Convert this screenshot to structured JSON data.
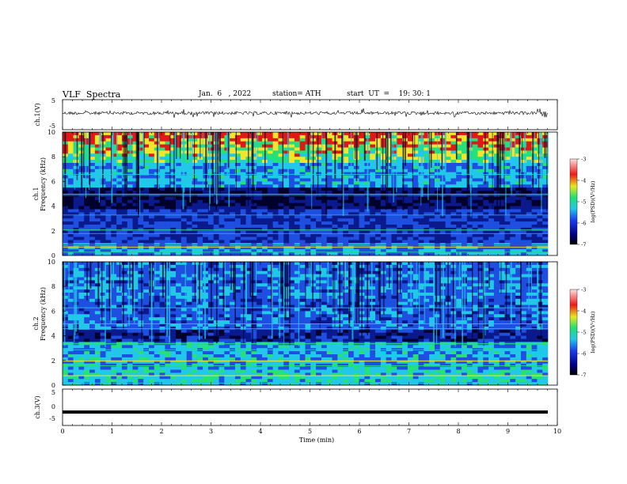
{
  "header": {
    "title": "VLF  Spectra",
    "date": "Jan.  6   , 2022",
    "station": "station= ATH",
    "start_ut": "start  UT  =    19: 30: 1"
  },
  "chart_data": [
    {
      "type": "line",
      "panel": "ch1-waveform",
      "ylabel": "ch.1(V)",
      "ylim": [
        -5,
        5
      ],
      "yticks": [
        "5",
        "-5"
      ],
      "xlim": [
        0,
        10
      ],
      "description_series": "noisy waveform near 0 V with sporadic spikes"
    },
    {
      "type": "heatmap",
      "panel": "ch1-spectrogram",
      "ylabel_top": "ch.1",
      "ylabel": "Frequency  (kHz)",
      "ylim": [
        0,
        10
      ],
      "yticks": [
        "0",
        "2",
        "4",
        "6",
        "8",
        "10"
      ],
      "xlim": [
        0,
        9.8
      ],
      "colorbar": {
        "label": "log(PSD)(V²/Hz)",
        "range": [
          -7,
          -3
        ],
        "ticks": [
          "-3",
          "-4",
          "-5",
          "-6",
          "-7"
        ]
      }
    },
    {
      "type": "heatmap",
      "panel": "ch2-spectrogram",
      "ylabel_top": "ch.2",
      "ylabel": "Frequency  (kHz)",
      "ylim": [
        0,
        10
      ],
      "yticks": [
        "0",
        "2",
        "4",
        "6",
        "8",
        "10"
      ],
      "xlim": [
        0,
        9.8
      ],
      "colorbar": {
        "label": "log(PSD)(V²/Hz)",
        "range": [
          -7,
          -3
        ],
        "ticks": [
          "-3",
          "-4",
          "-5",
          "-6",
          "-7"
        ]
      }
    },
    {
      "type": "line",
      "panel": "ch3-waveform",
      "ylabel": "ch.3(V)",
      "ylim": [
        -5,
        5
      ],
      "yticks": [
        "5",
        "0",
        "-5"
      ],
      "series": [
        {
          "values": [
            -1.3
          ]
        }
      ],
      "xlim": [
        0,
        10
      ]
    }
  ],
  "xaxis": {
    "label": "Time  (min)",
    "ticks": [
      "0",
      "1",
      "2",
      "3",
      "4",
      "5",
      "6",
      "7",
      "8",
      "9",
      "10"
    ],
    "range": [
      0,
      10
    ]
  },
  "colors": {
    "deep": "#00002a",
    "dark_blue": "#0a1a8c",
    "blue": "#1f4fe0",
    "cyan": "#22c8e8",
    "green": "#26e07a",
    "yellow": "#f2e62a",
    "red": "#e01818"
  }
}
